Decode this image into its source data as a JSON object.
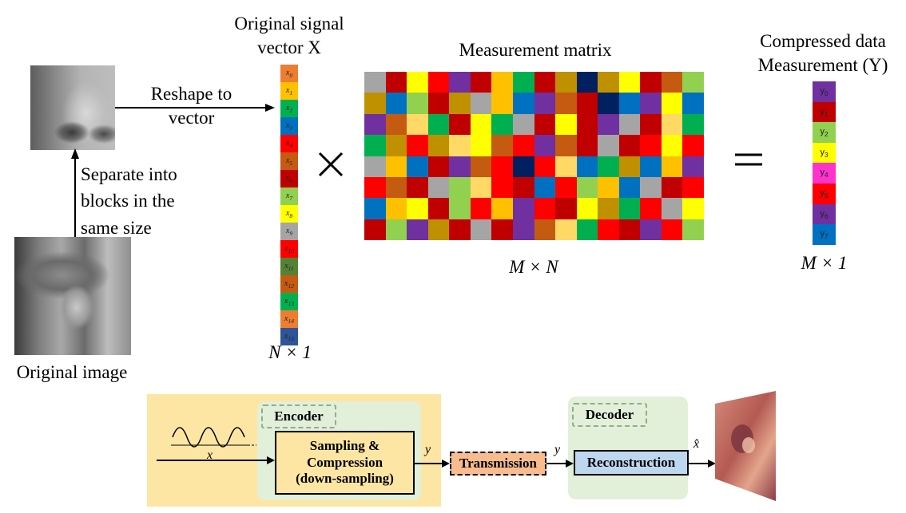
{
  "labels": {
    "original_signal_line1": "Original signal",
    "original_signal_line2": "vector X",
    "measurement_matrix": "Measurement matrix",
    "compressed_line1": "Compressed data",
    "compressed_line2": "Measurement (Y)",
    "reshape_line1": "Reshape to",
    "reshape_line2": "vector",
    "separate_line1": "Separate into",
    "separate_line2": "blocks in the",
    "separate_line3": "same size",
    "original_image": "Original image",
    "times_symbol": "×",
    "equals_symbol": "=",
    "n_by_1": "N × 1",
    "m_by_n": "M × N",
    "m_by_1": "M × 1"
  },
  "vector_x": {
    "cells": [
      {
        "label": "x0",
        "color": "#ed7d31"
      },
      {
        "label": "x1",
        "color": "#ffc000"
      },
      {
        "label": "x2",
        "color": "#00b050"
      },
      {
        "label": "x3",
        "color": "#0070c0"
      },
      {
        "label": "x4",
        "color": "#ff0000"
      },
      {
        "label": "x5",
        "color": "#c55a11"
      },
      {
        "label": "x6",
        "color": "#c00000"
      },
      {
        "label": "x7",
        "color": "#92d050"
      },
      {
        "label": "x8",
        "color": "#ffff00"
      },
      {
        "label": "x9",
        "color": "#a5a5a5"
      },
      {
        "label": "x10",
        "color": "#ff0000"
      },
      {
        "label": "x11",
        "color": "#548235"
      },
      {
        "label": "x12",
        "color": "#c55a11"
      },
      {
        "label": "x13",
        "color": "#00b050"
      },
      {
        "label": "x14",
        "color": "#ed7d31"
      },
      {
        "label": "x15",
        "color": "#2f5597"
      }
    ]
  },
  "vector_y": {
    "cells": [
      {
        "label": "y0",
        "color": "#7030a0"
      },
      {
        "label": "y1",
        "color": "#c00000"
      },
      {
        "label": "y2",
        "color": "#92d050"
      },
      {
        "label": "y3",
        "color": "#ffff00"
      },
      {
        "label": "y4",
        "color": "#ff33cc"
      },
      {
        "label": "y5",
        "color": "#ff0000"
      },
      {
        "label": "y6",
        "color": "#7030a0"
      },
      {
        "label": "y7",
        "color": "#0070c0"
      }
    ]
  },
  "matrix_colors": [
    [
      "#a5a5a5",
      "#c00000",
      "#ffff00",
      "#ff0000",
      "#7030a0",
      "#c00000",
      "#ffc000",
      "#00b050",
      "#c00000",
      "#bf9000",
      "#002060",
      "#bf9000",
      "#ffff00",
      "#c00000",
      "#c55a11",
      "#92d050"
    ],
    [
      "#bf9000",
      "#0070c0",
      "#92d050",
      "#c00000",
      "#bf9000",
      "#a5a5a5",
      "#ffc000",
      "#0070c0",
      "#7030a0",
      "#c55a11",
      "#c00000",
      "#002060",
      "#0070c0",
      "#7030a0",
      "#ffff00",
      "#0070c0"
    ],
    [
      "#7030a0",
      "#c55a11",
      "#ffd966",
      "#00b050",
      "#c00000",
      "#ffff00",
      "#00b050",
      "#a5a5a5",
      "#c00000",
      "#ffff00",
      "#c00000",
      "#7030a0",
      "#a5a5a5",
      "#c00000",
      "#ffd966",
      "#00b050"
    ],
    [
      "#00b050",
      "#bf9000",
      "#ff0000",
      "#bf9000",
      "#ffd966",
      "#ffff00",
      "#c55a11",
      "#ff0000",
      "#7030a0",
      "#c55a11",
      "#c00000",
      "#a5a5a5",
      "#c00000",
      "#ff0000",
      "#ffff00",
      "#ff0000"
    ],
    [
      "#a5a5a5",
      "#ffc000",
      "#0070c0",
      "#c00000",
      "#7030a0",
      "#c55a11",
      "#ff0000",
      "#002060",
      "#ff0000",
      "#ffd966",
      "#0070c0",
      "#00b050",
      "#bf9000",
      "#0070c0",
      "#ffc000",
      "#7030a0"
    ],
    [
      "#ff0000",
      "#c55a11",
      "#c00000",
      "#a5a5a5",
      "#92d050",
      "#ffd966",
      "#ff0000",
      "#c00000",
      "#0070c0",
      "#ff0000",
      "#92d050",
      "#ffc000",
      "#0070c0",
      "#a5a5a5",
      "#c00000",
      "#ff0000"
    ],
    [
      "#0070c0",
      "#ffc000",
      "#ffff00",
      "#c00000",
      "#92d050",
      "#ff0000",
      "#ffc000",
      "#7030a0",
      "#ff0000",
      "#c00000",
      "#ffff00",
      "#bf9000",
      "#00b050",
      "#ff0000",
      "#a5a5a5",
      "#ffff00"
    ],
    [
      "#c00000",
      "#92d050",
      "#7030a0",
      "#bf9000",
      "#c00000",
      "#a5a5a5",
      "#c00000",
      "#7030a0",
      "#c55a11",
      "#ffd966",
      "#00b050",
      "#ff0000",
      "#c00000",
      "#7030a0",
      "#ff0000",
      "#92d050"
    ]
  ],
  "diagram": {
    "encoder": "Encoder",
    "decoder": "Decoder",
    "sampling_line1": "Sampling &",
    "sampling_line2": "Compression",
    "sampling_line3": "(down-sampling)",
    "transmission": "Transmission",
    "reconstruction": "Reconstruction",
    "x_label": "x",
    "y_label1": "y",
    "y_label2": "y",
    "xhat_label": "x̂",
    "panel_color": "#fde6a4",
    "inner_color": "#e2efd9"
  }
}
